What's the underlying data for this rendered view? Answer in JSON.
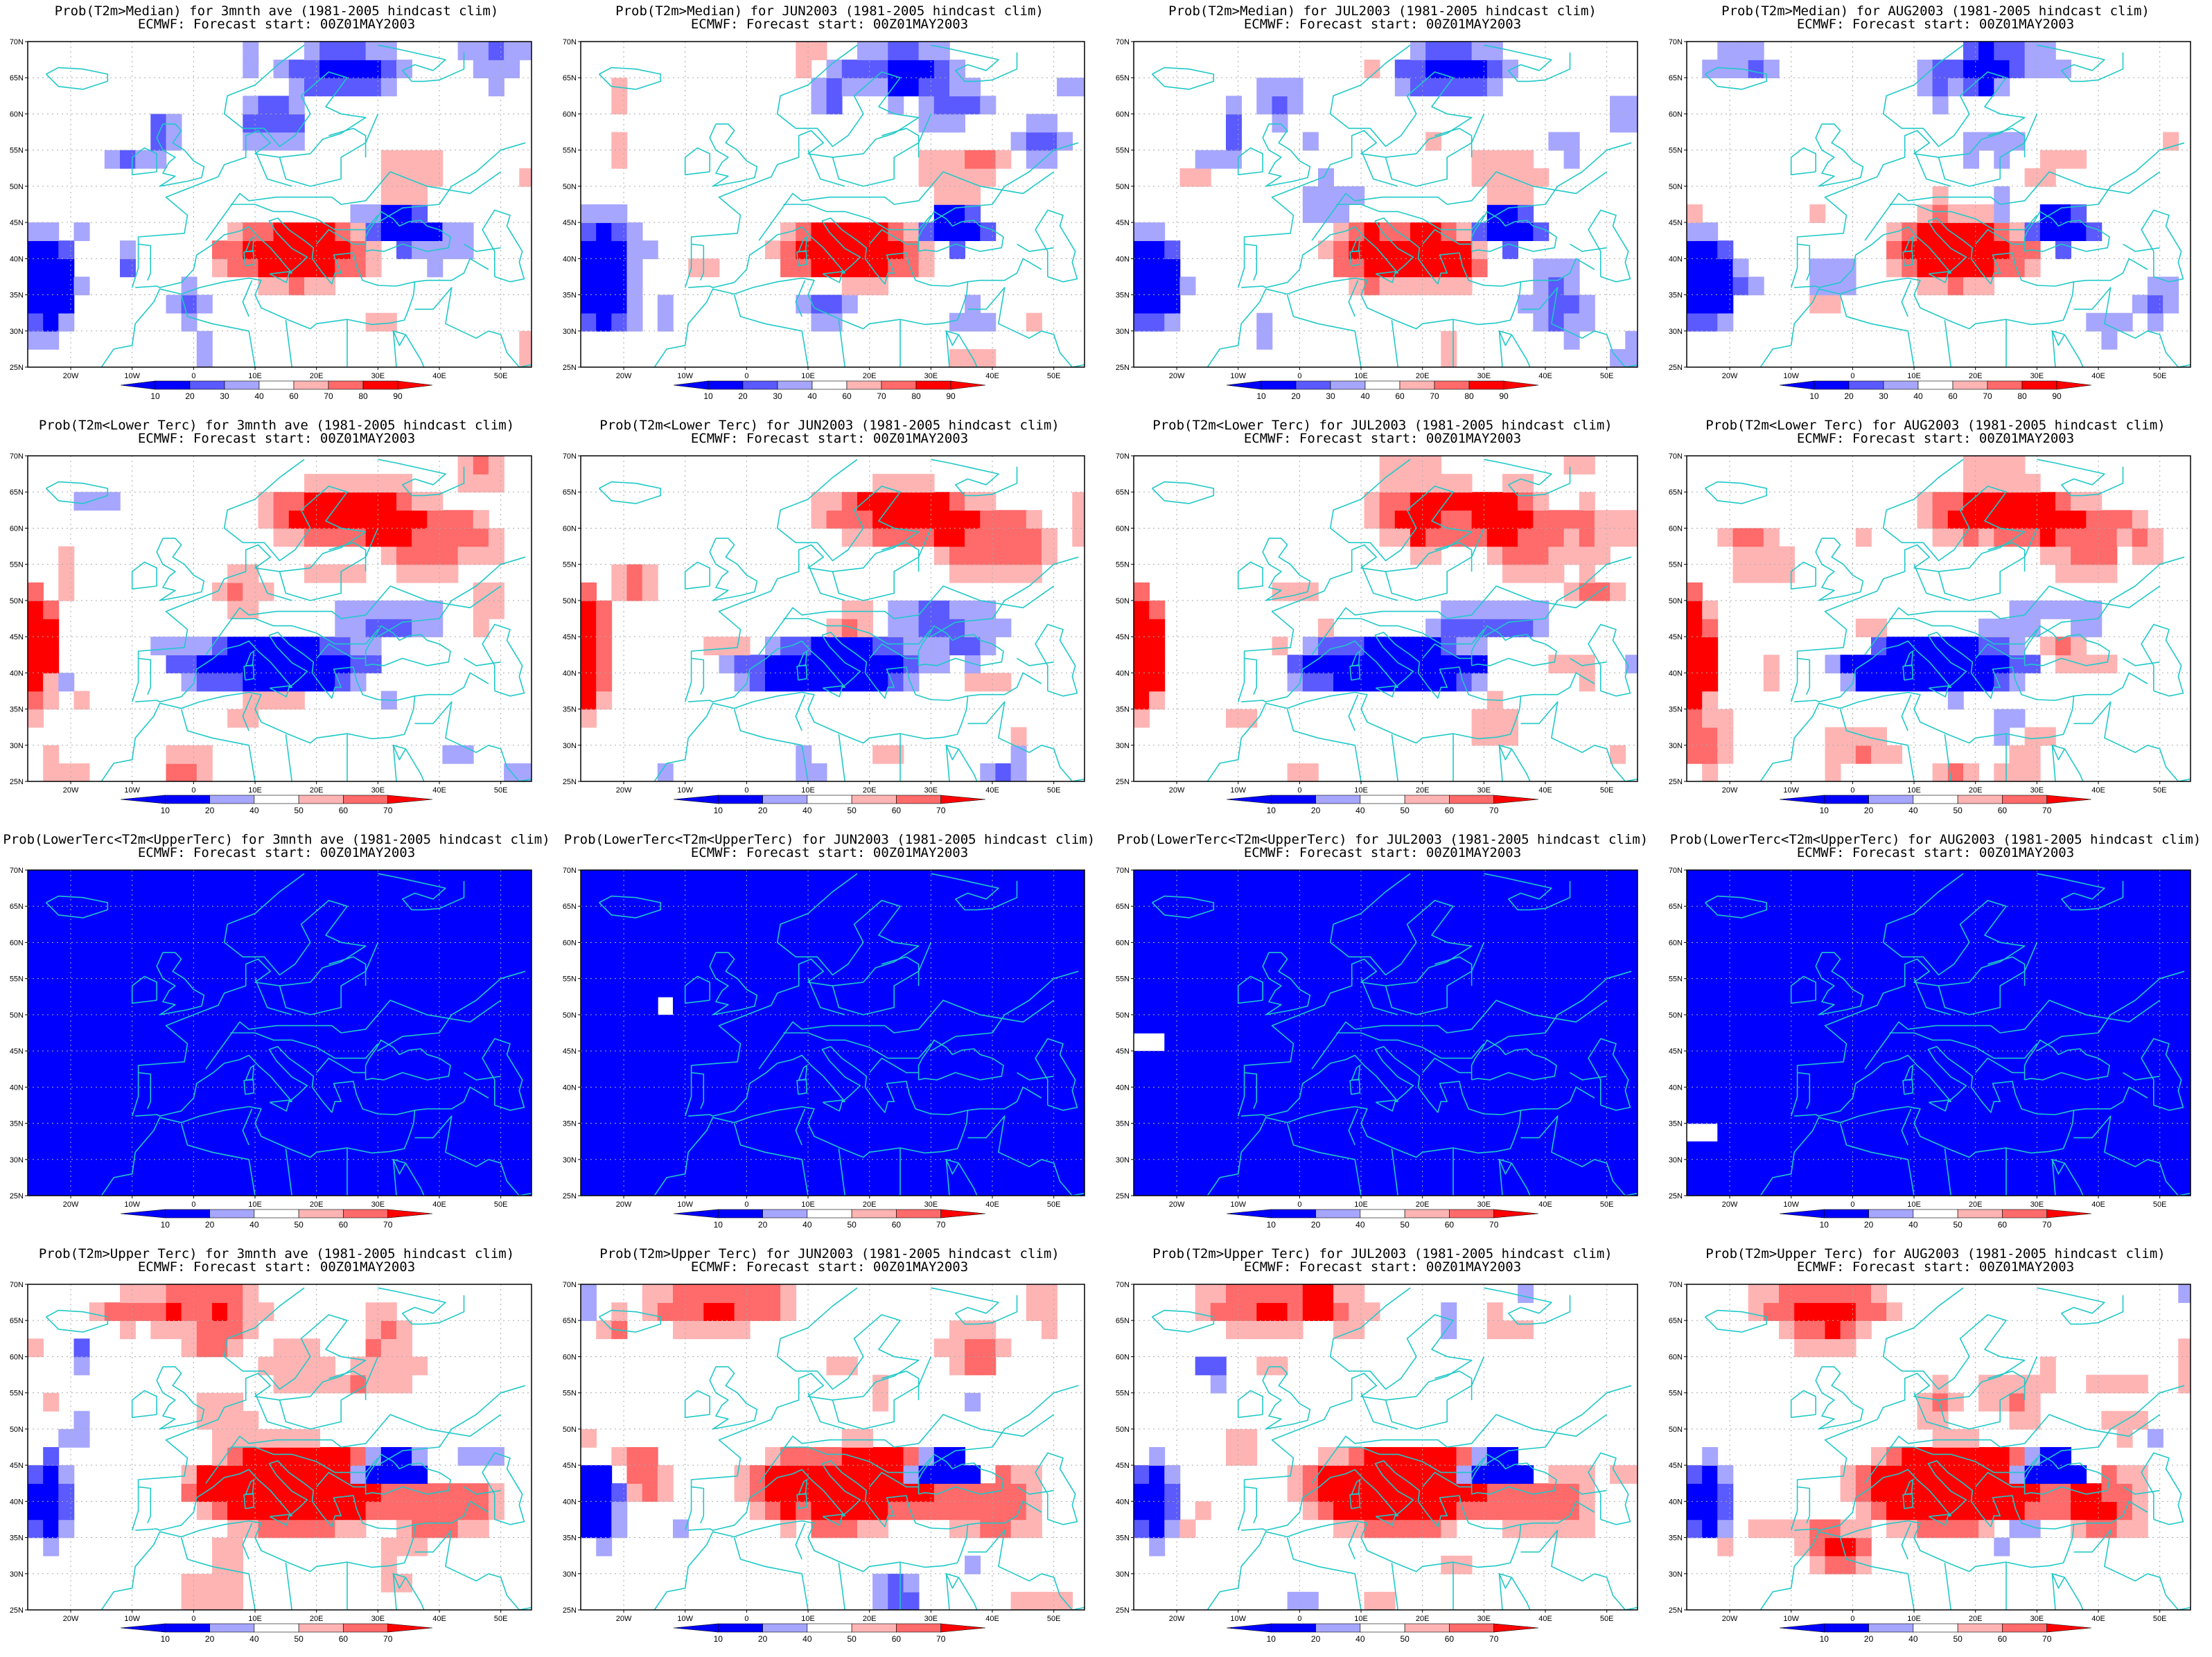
{
  "colors": {
    "blue_dark": "#0000ff",
    "blue_mid": "#5a5aff",
    "blue_light": "#a6a6ff",
    "red_light": "#ffb4b4",
    "red_mid": "#ff6a6a",
    "red_dark": "#ff0000",
    "coast": "#20c8c8"
  },
  "lat_ticks": [
    "70N",
    "65N",
    "60N",
    "55N",
    "50N",
    "45N",
    "40N",
    "35N",
    "30N",
    "25N"
  ],
  "lon_ticks": [
    "20W",
    "10W",
    "0",
    "10E",
    "20E",
    "30E",
    "40E",
    "50E"
  ],
  "map_extent": {
    "lon": [
      -27,
      55
    ],
    "lat": [
      25,
      70
    ]
  },
  "colorbars": {
    "median": [
      "10",
      "20",
      "30",
      "40",
      "60",
      "70",
      "80",
      "90"
    ],
    "tercile": [
      "10",
      "20",
      "40",
      "50",
      "60",
      "70"
    ]
  },
  "rows": [
    {
      "colorbar": "median",
      "panels": [
        {
          "title": "Prob(T2m>Median) for 3mnth ave (1981-2005 hindcast clim)",
          "subtitle": "ECMWF: Forecast start: 00Z01MAY2003"
        },
        {
          "title": "Prob(T2m>Median) for JUN2003 (1981-2005 hindcast clim)",
          "subtitle": "ECMWF: Forecast start: 00Z01MAY2003"
        },
        {
          "title": "Prob(T2m>Median) for JUL2003 (1981-2005 hindcast clim)",
          "subtitle": "ECMWF: Forecast start: 00Z01MAY2003"
        },
        {
          "title": "Prob(T2m>Median) for AUG2003 (1981-2005 hindcast clim)",
          "subtitle": "ECMWF: Forecast start: 00Z01MAY2003"
        }
      ]
    },
    {
      "colorbar": "tercile",
      "panels": [
        {
          "title": "Prob(T2m<Lower Terc) for 3mnth ave (1981-2005 hindcast clim)",
          "subtitle": "ECMWF: Forecast start: 00Z01MAY2003"
        },
        {
          "title": "Prob(T2m<Lower Terc) for JUN2003 (1981-2005 hindcast clim)",
          "subtitle": "ECMWF: Forecast start: 00Z01MAY2003"
        },
        {
          "title": "Prob(T2m<Lower Terc) for JUL2003 (1981-2005 hindcast clim)",
          "subtitle": "ECMWF: Forecast start: 00Z01MAY2003"
        },
        {
          "title": "Prob(T2m<Lower Terc) for AUG2003 (1981-2005 hindcast clim)",
          "subtitle": "ECMWF: Forecast start: 00Z01MAY2003"
        }
      ]
    },
    {
      "colorbar": "tercile",
      "panels": [
        {
          "title": "Prob(LowerTerc<T2m<UpperTerc) for 3mnth ave (1981-2005 hindcast clim)",
          "subtitle": "ECMWF: Forecast start: 00Z01MAY2003"
        },
        {
          "title": "Prob(LowerTerc<T2m<UpperTerc) for JUN2003 (1981-2005 hindcast clim)",
          "subtitle": "ECMWF: Forecast start: 00Z01MAY2003"
        },
        {
          "title": "Prob(LowerTerc<T2m<UpperTerc) for JUL2003 (1981-2005 hindcast clim)",
          "subtitle": "ECMWF: Forecast start: 00Z01MAY2003"
        },
        {
          "title": "Prob(LowerTerc<T2m<UpperTerc) for AUG2003 (1981-2005 hindcast clim)",
          "subtitle": "ECMWF: Forecast start: 00Z01MAY2003"
        }
      ]
    },
    {
      "colorbar": "tercile",
      "panels": [
        {
          "title": "Prob(T2m>Upper Terc) for 3mnth ave (1981-2005 hindcast clim)",
          "subtitle": "ECMWF: Forecast start: 00Z01MAY2003"
        },
        {
          "title": "Prob(T2m>Upper Terc) for JUN2003 (1981-2005 hindcast clim)",
          "subtitle": "ECMWF: Forecast start: 00Z01MAY2003"
        },
        {
          "title": "Prob(T2m>Upper Terc) for JUL2003 (1981-2005 hindcast clim)",
          "subtitle": "ECMWF: Forecast start: 00Z01MAY2003"
        },
        {
          "title": "Prob(T2m>Upper Terc) for AUG2003 (1981-2005 hindcast clim)",
          "subtitle": "ECMWF: Forecast start: 00Z01MAY2003"
        }
      ]
    }
  ]
}
